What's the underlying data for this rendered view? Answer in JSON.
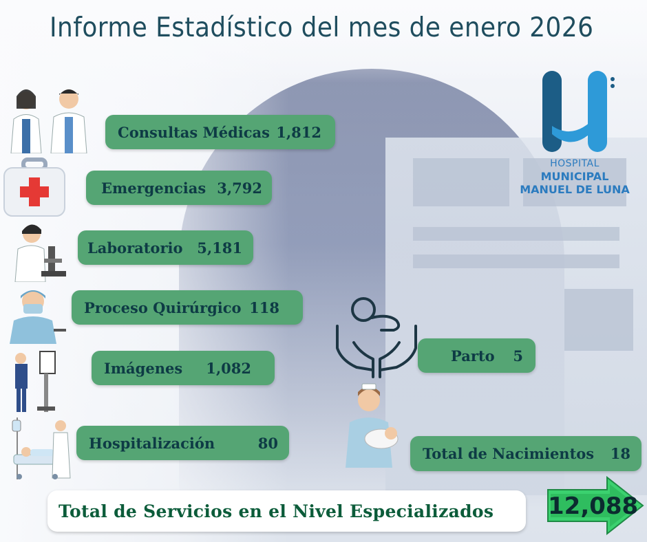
{
  "title": "Informe Estadístico del mes de enero 2026",
  "logo": {
    "subtitle": "HOSPITAL",
    "line1": "MUNICIPAL",
    "line2": "MANUEL DE LUNA"
  },
  "stats": {
    "consultas": {
      "label": "Consultas Médicas",
      "value": "1,812"
    },
    "emergencias": {
      "label": "Emergencias",
      "value": "3,792"
    },
    "laboratorio": {
      "label": "Laboratorio",
      "value": "5,181"
    },
    "quirurgico": {
      "label": "Proceso Quirúrgico",
      "value": "118"
    },
    "imagenes": {
      "label": "Imágenes",
      "value": "1,082"
    },
    "hospitalizacion": {
      "label": "Hospitalización",
      "value": "80"
    },
    "parto": {
      "label": "Parto",
      "value": "5"
    },
    "nacimientos": {
      "label": "Total de Nacimientos",
      "value": "18"
    }
  },
  "total": {
    "label": "Total de Servicios en el Nivel Especializados",
    "value": "12,088"
  },
  "colors": {
    "pill": "#55a574",
    "title": "#1f4d5e",
    "logo": "#2b7bbf",
    "total_label": "#0c5c3a",
    "arrow": "#3bd16f"
  }
}
